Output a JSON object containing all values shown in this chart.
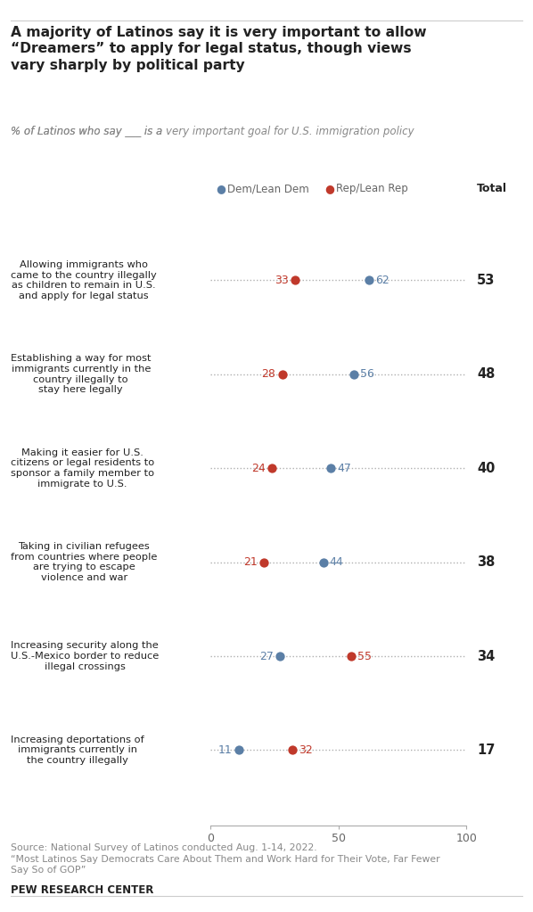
{
  "title_line1": "A majority of Latinos say it is very important to allow",
  "title_line2": "“Dreamers” to apply for legal status, though views",
  "title_line3": "vary sharply by political party",
  "subtitle_plain1": "% of Latinos who say ___ is a ",
  "subtitle_bold": "very important",
  "subtitle_plain2": " goal for U.S. immigration policy",
  "legend_dem": "Dem/Lean Dem",
  "legend_rep": "Rep/Lean Rep",
  "legend_total": "Total",
  "dem_color": "#5b7fa6",
  "rep_color": "#c0392b",
  "total_color": "#222222",
  "dot_line_color": "#b0b0b0",
  "categories": [
    "Allowing immigrants who\ncame to the country illegally\nas children to remain in U.S.\nand apply for legal status",
    "Establishing a way for most\nimmigrants currently in the\ncountry illegally to\nstay here legally",
    "Making it easier for U.S.\ncitizens or legal residents to\nsponsor a family member to\nimmigrate to U.S.",
    "Taking in civilian refugees\nfrom countries where people\nare trying to escape\nviolence and war",
    "Increasing security along the\nU.S.-Mexico border to reduce\nillegal crossings",
    "Increasing deportations of\nimmigrants currently in\nthe country illegally"
  ],
  "dem_values": [
    62,
    56,
    47,
    44,
    27,
    11
  ],
  "rep_values": [
    33,
    28,
    24,
    21,
    55,
    32
  ],
  "total_values": [
    53,
    48,
    40,
    38,
    34,
    17
  ],
  "source_line1": "Source: National Survey of Latinos conducted Aug. 1-14, 2022.",
  "source_line2": "“Most Latinos Say Democrats Care About Them and Work Hard for Their Vote, Far Fewer",
  "source_line3": "Say So of GOP”",
  "footer": "PEW RESEARCH CENTER",
  "background_color": "#ffffff",
  "text_color": "#222222",
  "subtitle_color": "#888888",
  "axis_label_color": "#666666",
  "top_line_color": "#cccccc",
  "bottom_line_color": "#cccccc"
}
